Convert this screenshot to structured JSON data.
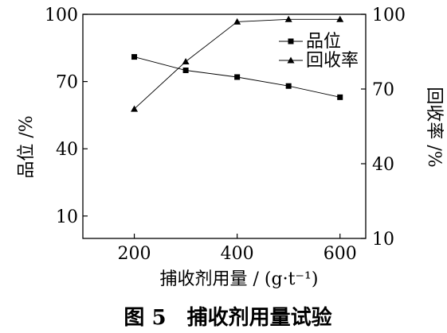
{
  "chart_data": {
    "type": "line",
    "x": [
      200,
      300,
      400,
      500,
      600
    ],
    "xlim": [
      100,
      650
    ],
    "xticks": [
      "200",
      "400",
      "600"
    ],
    "xlabel": "捕收剂用量 / (g·t⁻¹)",
    "ylabel_left": "品位 /%",
    "ylabel_right": "回收率 /%",
    "ylim_left": [
      0,
      100
    ],
    "ylim_right": [
      10,
      100
    ],
    "yticks_left": [
      10,
      40,
      70,
      100
    ],
    "yticks_right": [
      10,
      40,
      70,
      100
    ],
    "series": [
      {
        "name": "品位",
        "axis": "left",
        "marker": "square",
        "values": [
          81,
          75,
          72,
          68,
          63
        ]
      },
      {
        "name": "回收率",
        "axis": "right",
        "marker": "triangle",
        "values": [
          62,
          81,
          97,
          98,
          98
        ]
      }
    ],
    "legend_position": "top-right",
    "grid": false
  },
  "caption": "图 5　捕收剂用量试验"
}
